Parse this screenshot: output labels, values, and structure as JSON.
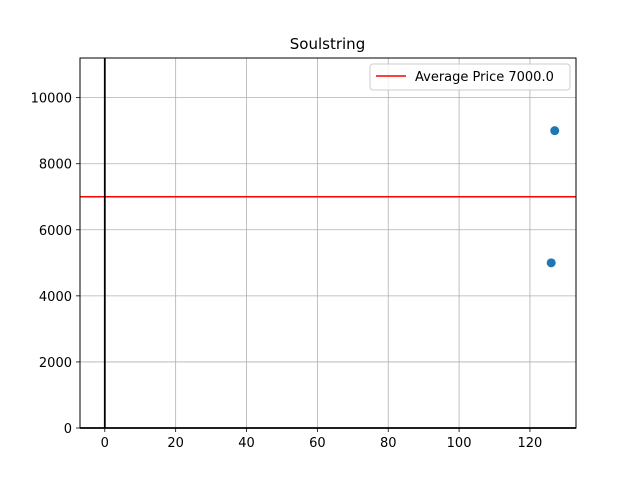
{
  "chart_data": {
    "type": "scatter",
    "title": "Soulstring",
    "xlabel": "",
    "ylabel": "",
    "xlim": [
      -7,
      133
    ],
    "ylim": [
      0,
      11200
    ],
    "xticks": [
      0,
      20,
      40,
      60,
      80,
      100,
      120
    ],
    "yticks": [
      0,
      2000,
      4000,
      6000,
      8000,
      10000
    ],
    "grid": true,
    "series": [
      {
        "points": [
          {
            "x": 126,
            "y": 5000
          },
          {
            "x": 127,
            "y": 9000
          }
        ],
        "color": "#1f77b4"
      }
    ],
    "reference_lines": [
      {
        "orientation": "horizontal",
        "value": 7000,
        "label": "Average Price 7000.0",
        "color": "#ff0000"
      },
      {
        "orientation": "vertical",
        "value": 0,
        "color": "#000000"
      },
      {
        "orientation": "horizontal",
        "value": 0,
        "color": "#000000"
      }
    ],
    "legend": {
      "position": "top-right",
      "entries": [
        "Average Price 7000.0"
      ]
    }
  }
}
